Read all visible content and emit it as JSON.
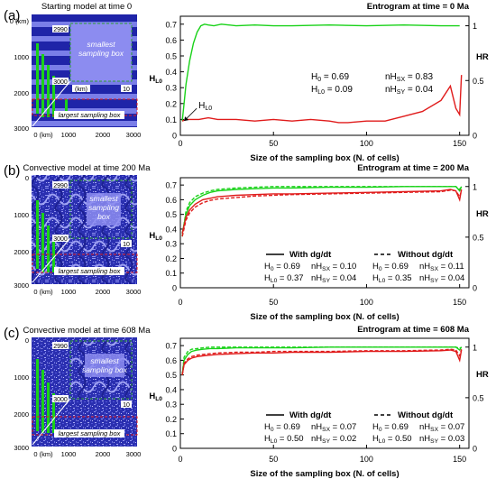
{
  "panels": [
    {
      "label": "(a)",
      "model_title": "Starting model at time 0",
      "map_style": "stripes",
      "map_labels": {
        "inset_top": "2990",
        "inset_bottom": "3000",
        "inset_mid": "(km)",
        "inset_right": "10",
        "smallest": [
          "smallest",
          "sampling box"
        ],
        "largest": "largest sampling box"
      },
      "map_axes": {
        "y_ticks": [
          "0 (km)",
          "1000",
          "2000",
          "3000"
        ],
        "x_ticks": [
          "0 (km)",
          "1000",
          "2000",
          "3000"
        ]
      }
    },
    {
      "label": "(b)",
      "model_title": "Convective model at time 200 Ma",
      "map_style": "convective",
      "map_labels": {
        "inset_top": "2990",
        "inset_bottom": "3000",
        "inset_mid": "",
        "inset_right": "10",
        "smallest": [
          "smallest",
          "sampling",
          "box"
        ],
        "largest": "largest sampling box"
      },
      "map_axes": {
        "y_ticks": [
          "0",
          "1000",
          "2000",
          "3000"
        ],
        "x_ticks": [
          "0 (km)",
          "1000",
          "2000",
          "3000"
        ]
      }
    },
    {
      "label": "(c)",
      "model_title": "Convective model at time 608 Ma",
      "map_style": "convective",
      "map_labels": {
        "inset_top": "2990",
        "inset_bottom": "3000",
        "inset_mid": "",
        "inset_right": "10",
        "smallest": [
          "smallest",
          "sampling box"
        ],
        "largest": "largest sampling box"
      },
      "map_axes": {
        "y_ticks": [
          "0",
          "1000",
          "2000",
          "3000"
        ],
        "x_ticks": [
          "0 (km)",
          "1000",
          "2000",
          "3000"
        ]
      }
    }
  ],
  "colors": {
    "green": "#19d219",
    "red": "#e01b1b",
    "map_dark": "#1f24a8",
    "map_light": "#7a7ee8",
    "map_inset": "#8c8cf0",
    "dash_green": "#2fa02f"
  },
  "chart_data": [
    {
      "type": "line",
      "title": "Entrogram at time = 0 Ma",
      "xlabel": "Size of the sampling box (N. of cells)",
      "ylabel_left": "H",
      "ylabel_left_sub": "L0",
      "ylabel_right": "H",
      "ylabel_right_sub": "R",
      "xlim": [
        0,
        155
      ],
      "ylim": [
        0,
        0.75
      ],
      "xticks": [
        "0",
        "50",
        "100",
        "150"
      ],
      "xtick_values": [
        0,
        50,
        100,
        150
      ],
      "yticks": [
        "0",
        "0.1",
        "0.2",
        "0.3",
        "0.4",
        "0.5",
        "0.6",
        "0.7"
      ],
      "ytick_values": [
        0,
        0.1,
        0.2,
        0.3,
        0.4,
        0.5,
        0.6,
        0.7
      ],
      "right_ticks": [
        "0",
        "0.5",
        "1"
      ],
      "right_tick_values": [
        0,
        0.345,
        0.69
      ],
      "annotation": "H",
      "annotation_sub": "L0",
      "annotation_point": [
        2,
        0.09
      ],
      "stats": [
        [
          "H0 = 0.69",
          "nHSX = 0.83"
        ],
        [
          "HL0 = 0.09",
          "nHSY = 0.04"
        ]
      ],
      "series": [
        {
          "style": "solid",
          "color": "green",
          "x": [
            1,
            2,
            3,
            5,
            7,
            9,
            11,
            13,
            15,
            18,
            22,
            26,
            30,
            40,
            50,
            60,
            80,
            100,
            120,
            140,
            150
          ],
          "y": [
            0.09,
            0.2,
            0.32,
            0.47,
            0.58,
            0.65,
            0.69,
            0.7,
            0.695,
            0.69,
            0.7,
            0.695,
            0.69,
            0.695,
            0.69,
            0.69,
            0.695,
            0.69,
            0.695,
            0.69,
            0.69
          ]
        },
        {
          "style": "solid",
          "color": "red",
          "x": [
            1,
            3,
            6,
            10,
            15,
            20,
            30,
            40,
            50,
            60,
            70,
            80,
            85,
            90,
            100,
            110,
            120,
            130,
            140,
            145,
            148,
            150,
            151
          ],
          "y": [
            0.09,
            0.1,
            0.1,
            0.1,
            0.11,
            0.1,
            0.1,
            0.09,
            0.1,
            0.09,
            0.1,
            0.09,
            0.08,
            0.08,
            0.09,
            0.09,
            0.12,
            0.15,
            0.22,
            0.31,
            0.17,
            0.13,
            0.38
          ]
        }
      ]
    },
    {
      "type": "line",
      "title": "Entrogram at time = 200 Ma",
      "xlabel": "Size of the sampling box (N. of cells)",
      "ylabel_left": "H",
      "ylabel_left_sub": "L0",
      "ylabel_right": "H",
      "ylabel_right_sub": "R",
      "xlim": [
        0,
        155
      ],
      "ylim": [
        0,
        0.75
      ],
      "xticks": [
        "0",
        "50",
        "100",
        "150"
      ],
      "xtick_values": [
        0,
        50,
        100,
        150
      ],
      "yticks": [
        "0",
        "0.1",
        "0.2",
        "0.3",
        "0.4",
        "0.5",
        "0.6",
        "0.7"
      ],
      "ytick_values": [
        0,
        0.1,
        0.2,
        0.3,
        0.4,
        0.5,
        0.6,
        0.7
      ],
      "right_ticks": [
        "0",
        "0.5",
        "1"
      ],
      "right_tick_values": [
        0,
        0.345,
        0.69
      ],
      "legend": [
        {
          "style": "solid",
          "label": "With dg/dt",
          "stats": [
            [
              "H0 = 0.69",
              "nHSX = 0.10"
            ],
            [
              "HL0 = 0.37",
              "nHSY = 0.04"
            ]
          ]
        },
        {
          "style": "dashed",
          "label": "Without dg/dt",
          "stats": [
            [
              "H0 = 0.69",
              "nHSX = 0.11"
            ],
            [
              "HL0 = 0.35",
              "nHSY = 0.04"
            ]
          ]
        }
      ],
      "series": [
        {
          "style": "solid",
          "color": "green",
          "x": [
            1,
            3,
            5,
            8,
            12,
            16,
            20,
            25,
            30,
            40,
            50,
            60,
            80,
            100,
            120,
            140,
            148,
            150,
            151
          ],
          "y": [
            0.37,
            0.5,
            0.56,
            0.6,
            0.63,
            0.65,
            0.66,
            0.665,
            0.67,
            0.675,
            0.68,
            0.68,
            0.685,
            0.685,
            0.69,
            0.69,
            0.69,
            0.66,
            0.69
          ]
        },
        {
          "style": "dashed",
          "color": "green",
          "x": [
            1,
            3,
            5,
            8,
            12,
            16,
            20,
            25,
            30,
            40,
            50,
            60,
            80,
            100,
            120,
            140,
            148,
            150,
            151
          ],
          "y": [
            0.35,
            0.52,
            0.58,
            0.62,
            0.645,
            0.66,
            0.67,
            0.675,
            0.68,
            0.685,
            0.69,
            0.69,
            0.69,
            0.69,
            0.69,
            0.69,
            0.69,
            0.67,
            0.69
          ]
        },
        {
          "style": "solid",
          "color": "red",
          "x": [
            1,
            3,
            5,
            8,
            12,
            16,
            20,
            25,
            30,
            40,
            50,
            60,
            80,
            100,
            120,
            140,
            145,
            148,
            150,
            151
          ],
          "y": [
            0.37,
            0.48,
            0.53,
            0.57,
            0.6,
            0.61,
            0.62,
            0.625,
            0.63,
            0.635,
            0.64,
            0.64,
            0.645,
            0.65,
            0.655,
            0.66,
            0.67,
            0.66,
            0.6,
            0.67
          ]
        },
        {
          "style": "dashed",
          "color": "red",
          "x": [
            1,
            3,
            5,
            8,
            12,
            16,
            20,
            25,
            30,
            40,
            50,
            60,
            80,
            100,
            120,
            140,
            145,
            148,
            150,
            151
          ],
          "y": [
            0.35,
            0.46,
            0.51,
            0.55,
            0.58,
            0.595,
            0.605,
            0.61,
            0.615,
            0.625,
            0.63,
            0.635,
            0.64,
            0.645,
            0.65,
            0.655,
            0.665,
            0.66,
            0.62,
            0.66
          ]
        }
      ]
    },
    {
      "type": "line",
      "title": "Entrogram at time = 608 Ma",
      "xlabel": "Size of the sampling box (N. of cells)",
      "ylabel_left": "H",
      "ylabel_left_sub": "L0",
      "ylabel_right": "H",
      "ylabel_right_sub": "R",
      "xlim": [
        0,
        155
      ],
      "ylim": [
        0,
        0.75
      ],
      "xticks": [
        "0",
        "50",
        "100",
        "150"
      ],
      "xtick_values": [
        0,
        50,
        100,
        150
      ],
      "yticks": [
        "0",
        "0.1",
        "0.2",
        "0.3",
        "0.4",
        "0.5",
        "0.6",
        "0.7"
      ],
      "ytick_values": [
        0,
        0.1,
        0.2,
        0.3,
        0.4,
        0.5,
        0.6,
        0.7
      ],
      "right_ticks": [
        "0",
        "0.5",
        "1"
      ],
      "right_tick_values": [
        0,
        0.345,
        0.69
      ],
      "legend": [
        {
          "style": "solid",
          "label": "With dg/dt",
          "stats": [
            [
              "H0 = 0.69",
              "nHSX = 0.07"
            ],
            [
              "HL0 = 0.50",
              "nHSY = 0.02"
            ]
          ]
        },
        {
          "style": "dashed",
          "label": "Without dg/dt",
          "stats": [
            [
              "H0 = 0.69",
              "nHSX = 0.07"
            ],
            [
              "HL0 = 0.50",
              "nHSY = 0.03"
            ]
          ]
        }
      ],
      "series": [
        {
          "style": "solid",
          "color": "green",
          "x": [
            1,
            2,
            4,
            6,
            9,
            12,
            16,
            20,
            30,
            40,
            50,
            60,
            80,
            100,
            120,
            140,
            148,
            150,
            151
          ],
          "y": [
            0.5,
            0.6,
            0.64,
            0.66,
            0.67,
            0.675,
            0.68,
            0.68,
            0.685,
            0.685,
            0.685,
            0.685,
            0.69,
            0.69,
            0.69,
            0.69,
            0.69,
            0.67,
            0.69
          ]
        },
        {
          "style": "dashed",
          "color": "green",
          "x": [
            1,
            2,
            4,
            6,
            9,
            12,
            16,
            20,
            30,
            40,
            50,
            60,
            80,
            100,
            120,
            140,
            148,
            150,
            151
          ],
          "y": [
            0.5,
            0.62,
            0.66,
            0.675,
            0.68,
            0.685,
            0.69,
            0.69,
            0.69,
            0.69,
            0.69,
            0.69,
            0.69,
            0.69,
            0.69,
            0.69,
            0.69,
            0.68,
            0.69
          ]
        },
        {
          "style": "solid",
          "color": "red",
          "x": [
            1,
            2,
            4,
            6,
            9,
            12,
            16,
            20,
            30,
            40,
            50,
            60,
            80,
            100,
            120,
            140,
            145,
            148,
            150,
            151
          ],
          "y": [
            0.5,
            0.57,
            0.6,
            0.615,
            0.625,
            0.63,
            0.635,
            0.64,
            0.645,
            0.65,
            0.65,
            0.655,
            0.655,
            0.66,
            0.66,
            0.665,
            0.67,
            0.66,
            0.6,
            0.67
          ]
        },
        {
          "style": "dashed",
          "color": "red",
          "x": [
            1,
            2,
            4,
            6,
            9,
            12,
            16,
            20,
            30,
            40,
            50,
            60,
            80,
            100,
            120,
            140,
            145,
            148,
            150,
            151
          ],
          "y": [
            0.5,
            0.58,
            0.61,
            0.625,
            0.635,
            0.64,
            0.645,
            0.65,
            0.655,
            0.655,
            0.66,
            0.66,
            0.66,
            0.665,
            0.665,
            0.67,
            0.675,
            0.67,
            0.63,
            0.675
          ]
        }
      ]
    }
  ]
}
